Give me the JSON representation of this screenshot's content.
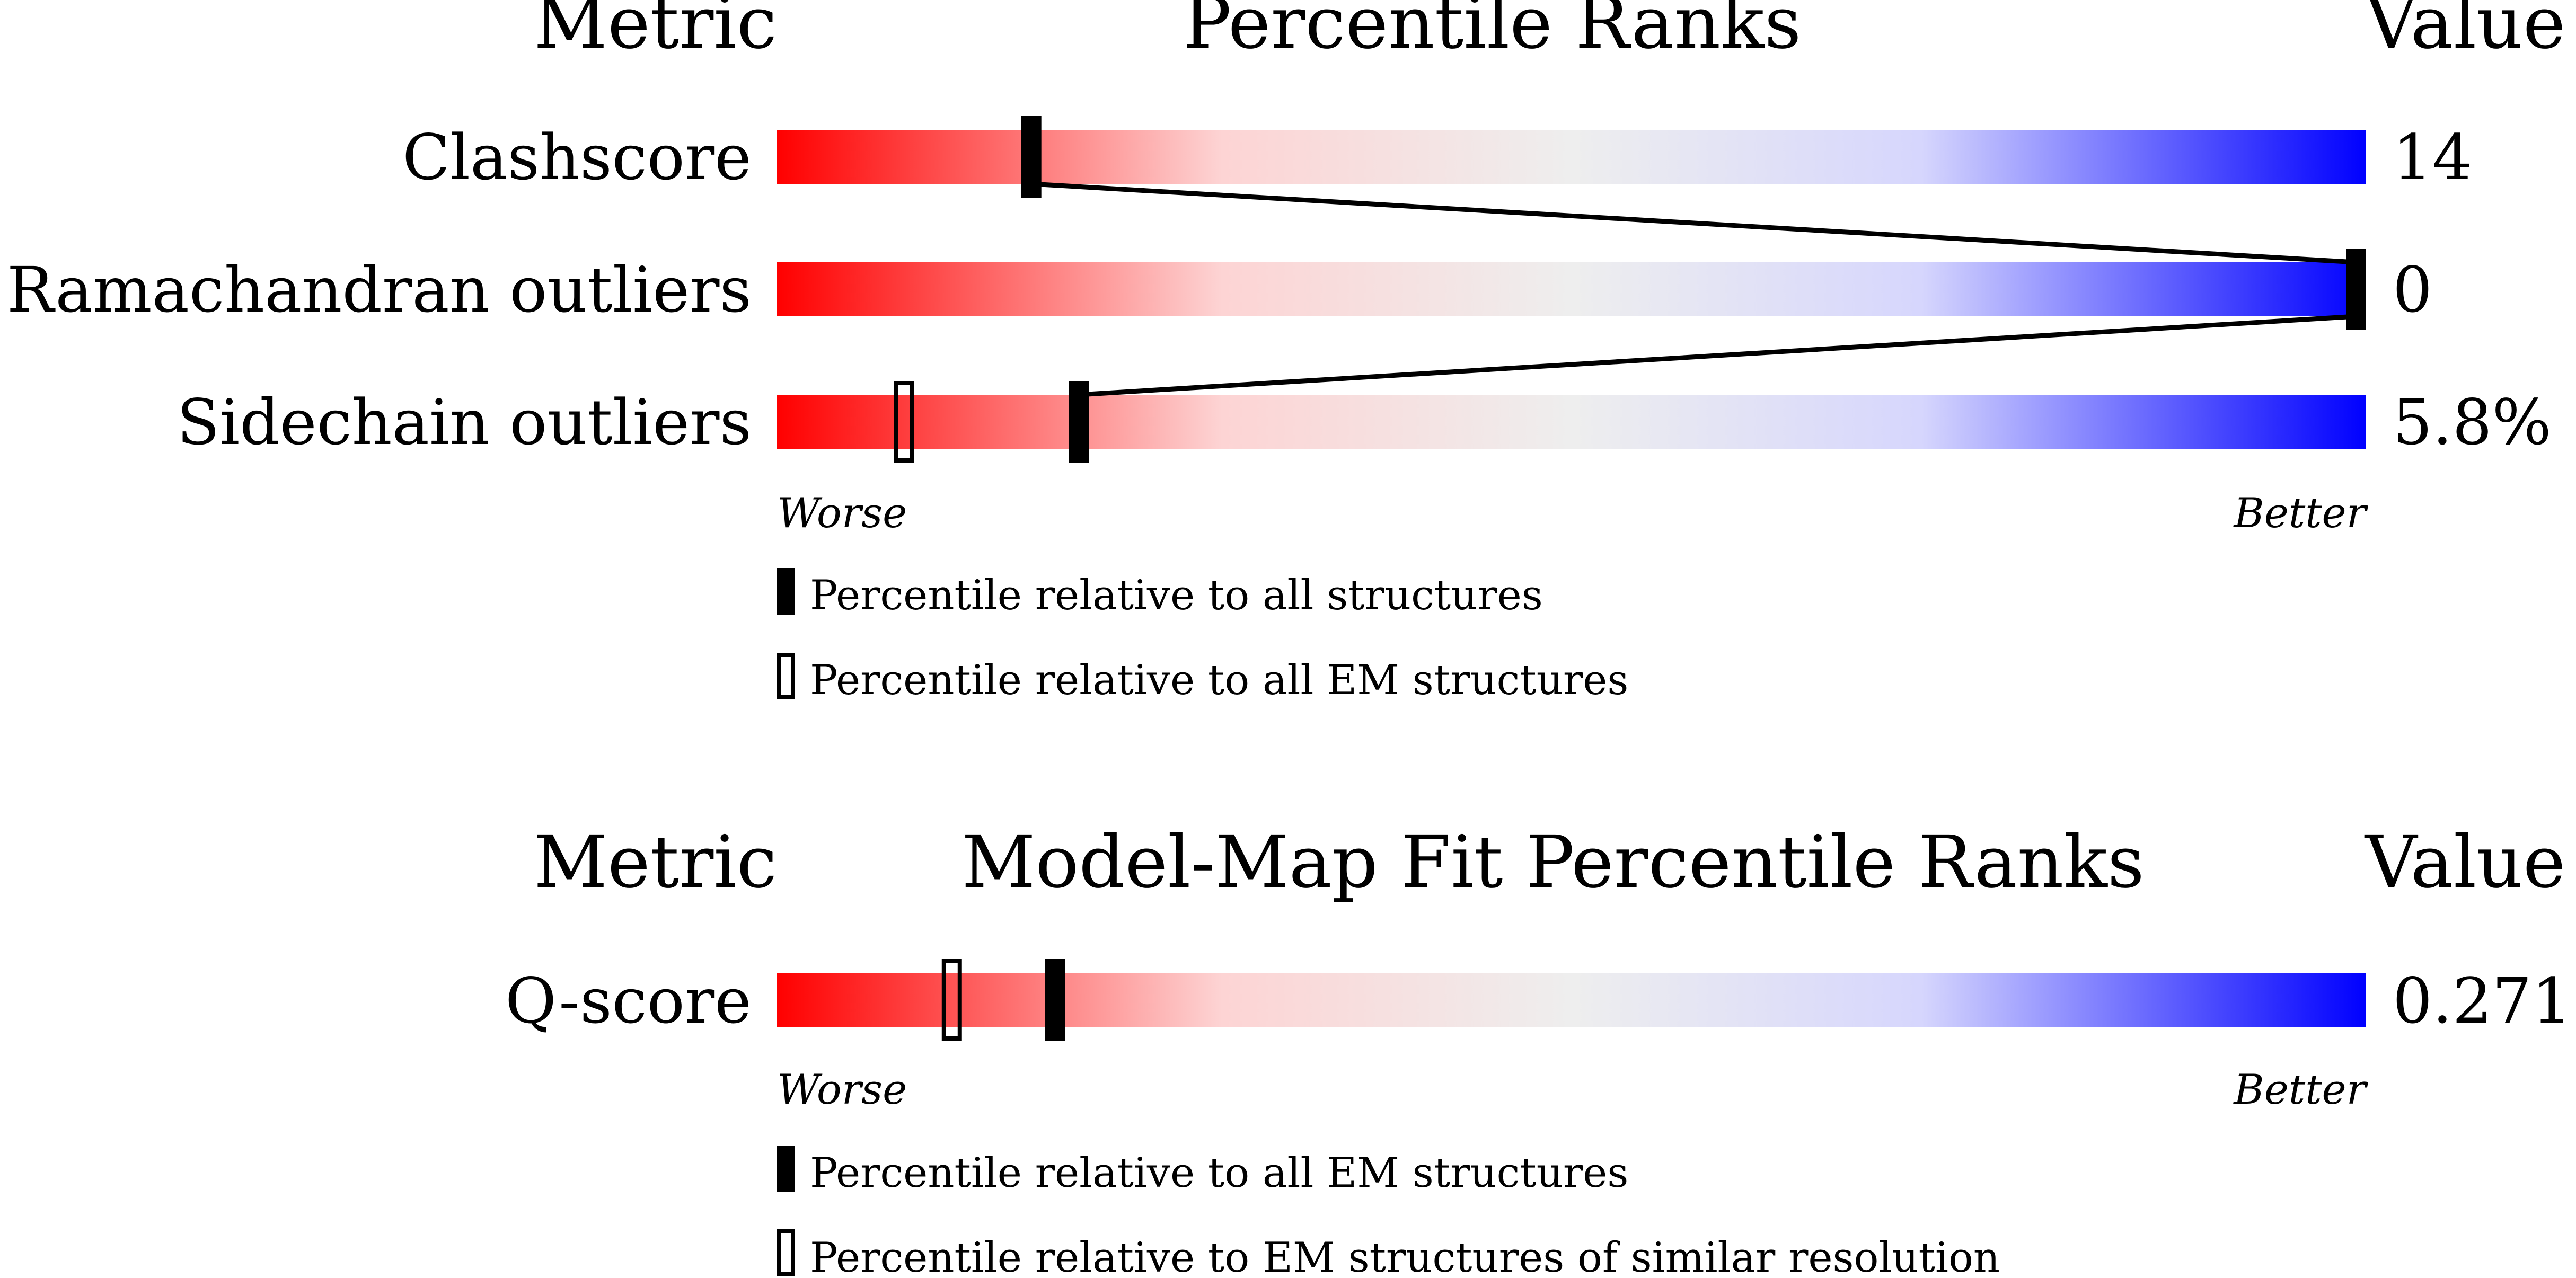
{
  "charts": [
    {
      "header": {
        "metric": "Metric",
        "title": "Percentile Ranks",
        "value": "Value"
      },
      "rows": [
        {
          "label": "Clashscore",
          "value": "14"
        },
        {
          "label": "Ramachandran outliers",
          "value": "0"
        },
        {
          "label": "Sidechain outliers",
          "value": "5.8%"
        }
      ],
      "axis": {
        "worse": "Worse",
        "better": "Better"
      },
      "legend": [
        {
          "marker": "filled",
          "text": "Percentile relative to all structures"
        },
        {
          "marker": "hollow",
          "text": "Percentile relative to all EM structures"
        }
      ]
    },
    {
      "header": {
        "metric": "Metric",
        "title": "Model-Map Fit Percentile Ranks",
        "value": "Value"
      },
      "rows": [
        {
          "label": "Q-score",
          "value": "0.271"
        }
      ],
      "axis": {
        "worse": "Worse",
        "better": "Better"
      },
      "legend": [
        {
          "marker": "filled",
          "text": "Percentile relative to all EM structures"
        },
        {
          "marker": "hollow",
          "text": "Percentile relative to EM structures of similar resolution"
        }
      ]
    }
  ],
  "chart_data": [
    {
      "type": "bar",
      "title": "Percentile Ranks",
      "categories": [
        "Clashscore",
        "Ramachandran outliers",
        "Sidechain outliers"
      ],
      "values_displayed": [
        "14",
        "0",
        "5.8%"
      ],
      "xlim": [
        0,
        100
      ],
      "series": [
        {
          "name": "Percentile relative to all structures",
          "marker": "filled",
          "values": [
            16,
            100,
            19
          ]
        },
        {
          "name": "Percentile relative to all EM structures",
          "marker": "hollow",
          "values": [
            null,
            null,
            8
          ]
        }
      ],
      "gradient": {
        "worse_color": "#ff0000",
        "mid_color": "#eeeeee",
        "better_color": "#0000ff"
      }
    },
    {
      "type": "bar",
      "title": "Model-Map Fit Percentile Ranks",
      "categories": [
        "Q-score"
      ],
      "values_displayed": [
        "0.271"
      ],
      "xlim": [
        0,
        100
      ],
      "series": [
        {
          "name": "Percentile relative to all EM structures",
          "marker": "filled",
          "values": [
            17.5
          ]
        },
        {
          "name": "Percentile relative to EM structures of similar resolution",
          "marker": "hollow",
          "values": [
            11
          ]
        }
      ],
      "gradient": {
        "worse_color": "#ff0000",
        "mid_color": "#eeeeee",
        "better_color": "#0000ff"
      }
    }
  ]
}
